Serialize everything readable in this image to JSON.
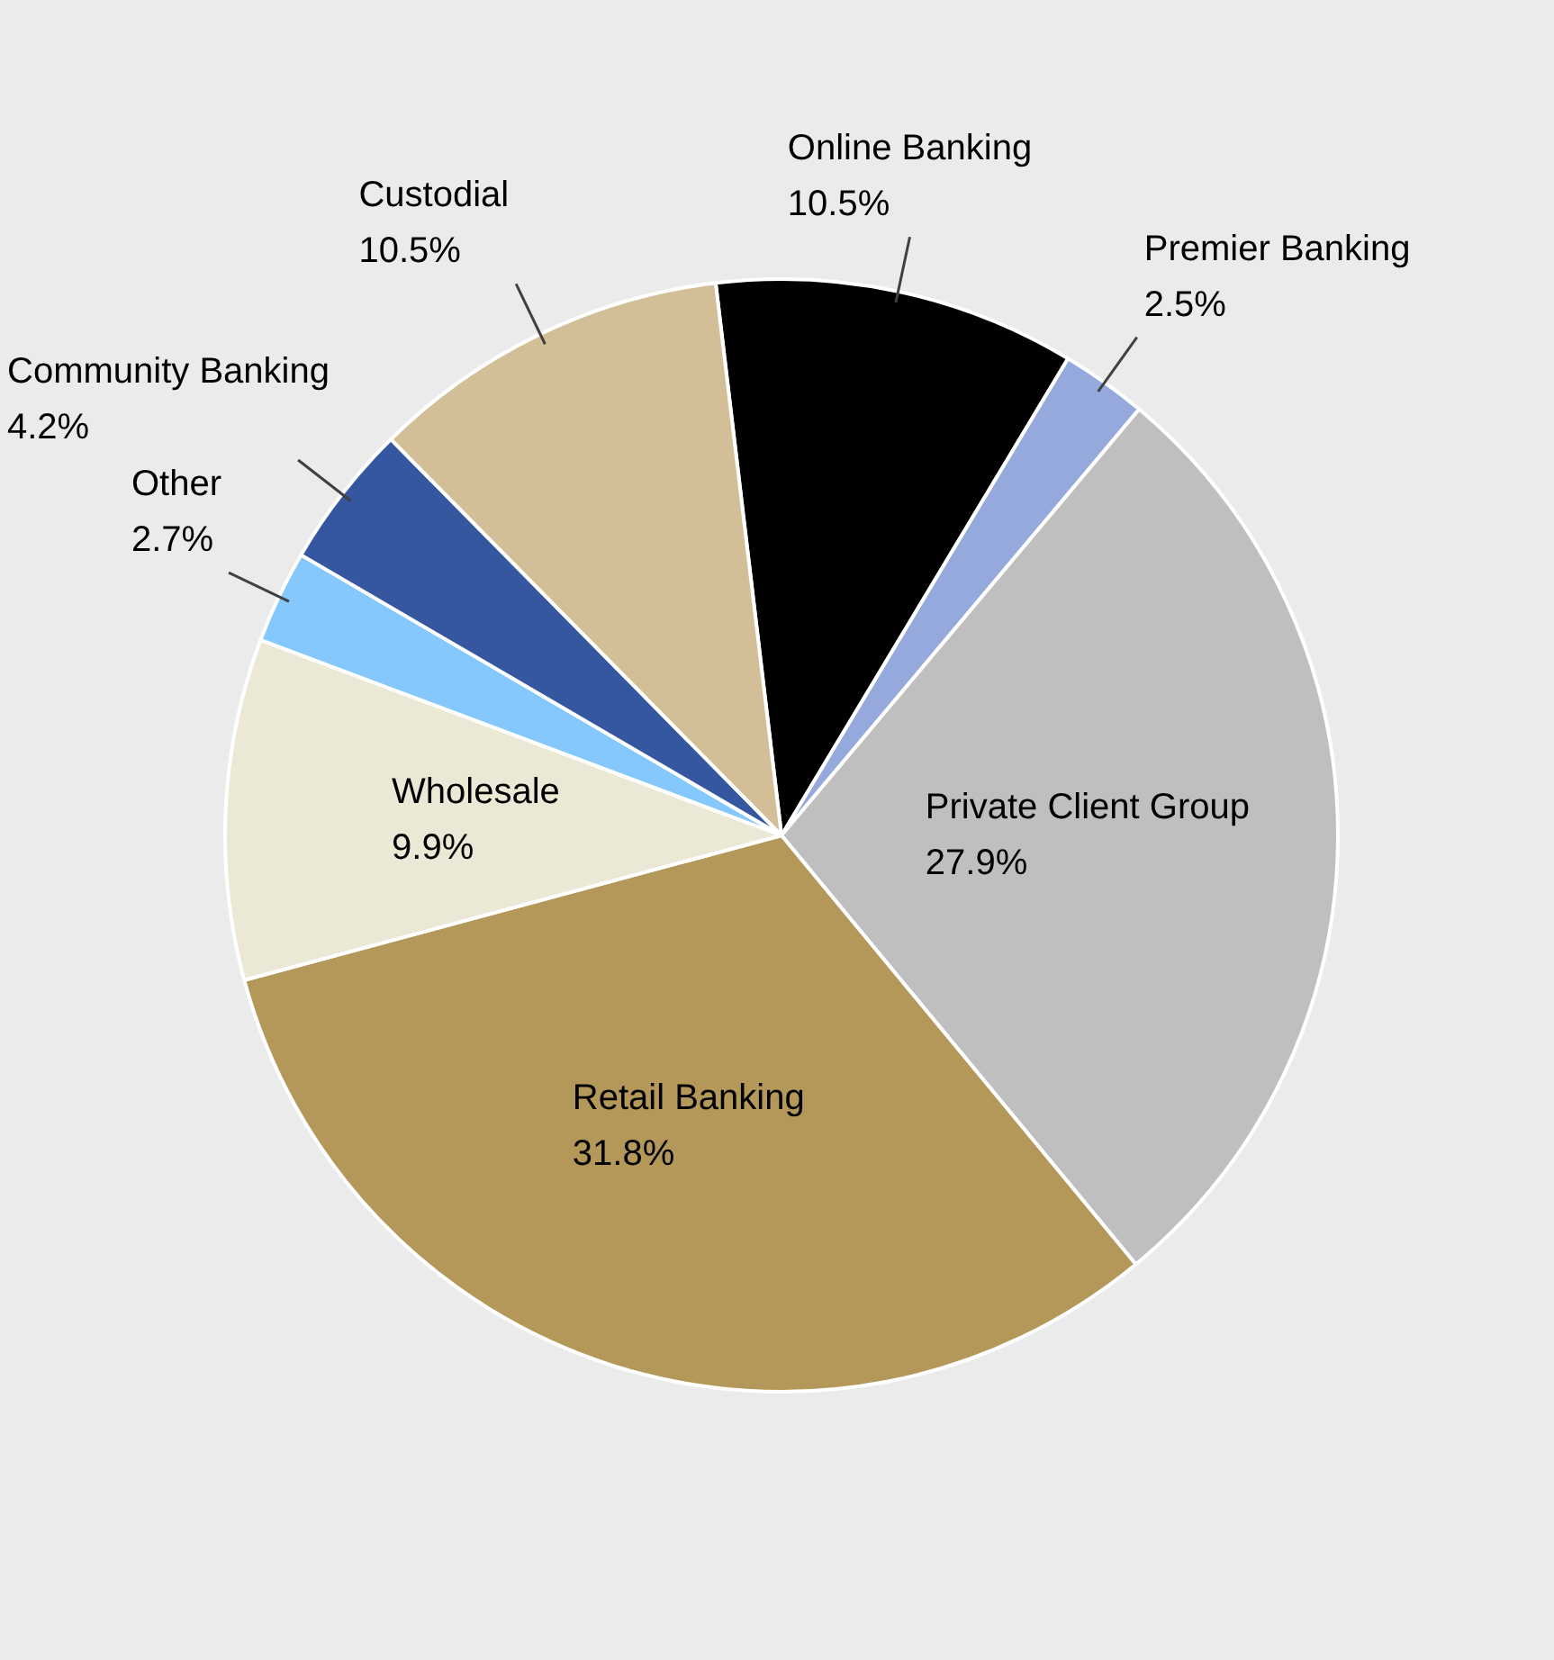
{
  "chart_data": {
    "type": "pie",
    "categories": [
      "Online Banking",
      "Premier Banking",
      "Private Client Group",
      "Retail Banking",
      "Wholesale",
      "Other",
      "Community Banking",
      "Custodial"
    ],
    "values": [
      10.5,
      2.5,
      27.9,
      31.8,
      9.9,
      2.7,
      4.2,
      10.5
    ],
    "value_labels": [
      "10.5%",
      "2.5%",
      "27.9%",
      "31.8%",
      "9.9%",
      "2.7%",
      "4.2%",
      "10.5%"
    ],
    "colors": [
      "#000000",
      "#95a9dc",
      "#bfbfbf",
      "#b3985a",
      "#ece8d6",
      "#85c8fd",
      "#3557a0",
      "#d2bf97"
    ],
    "legend": false
  }
}
